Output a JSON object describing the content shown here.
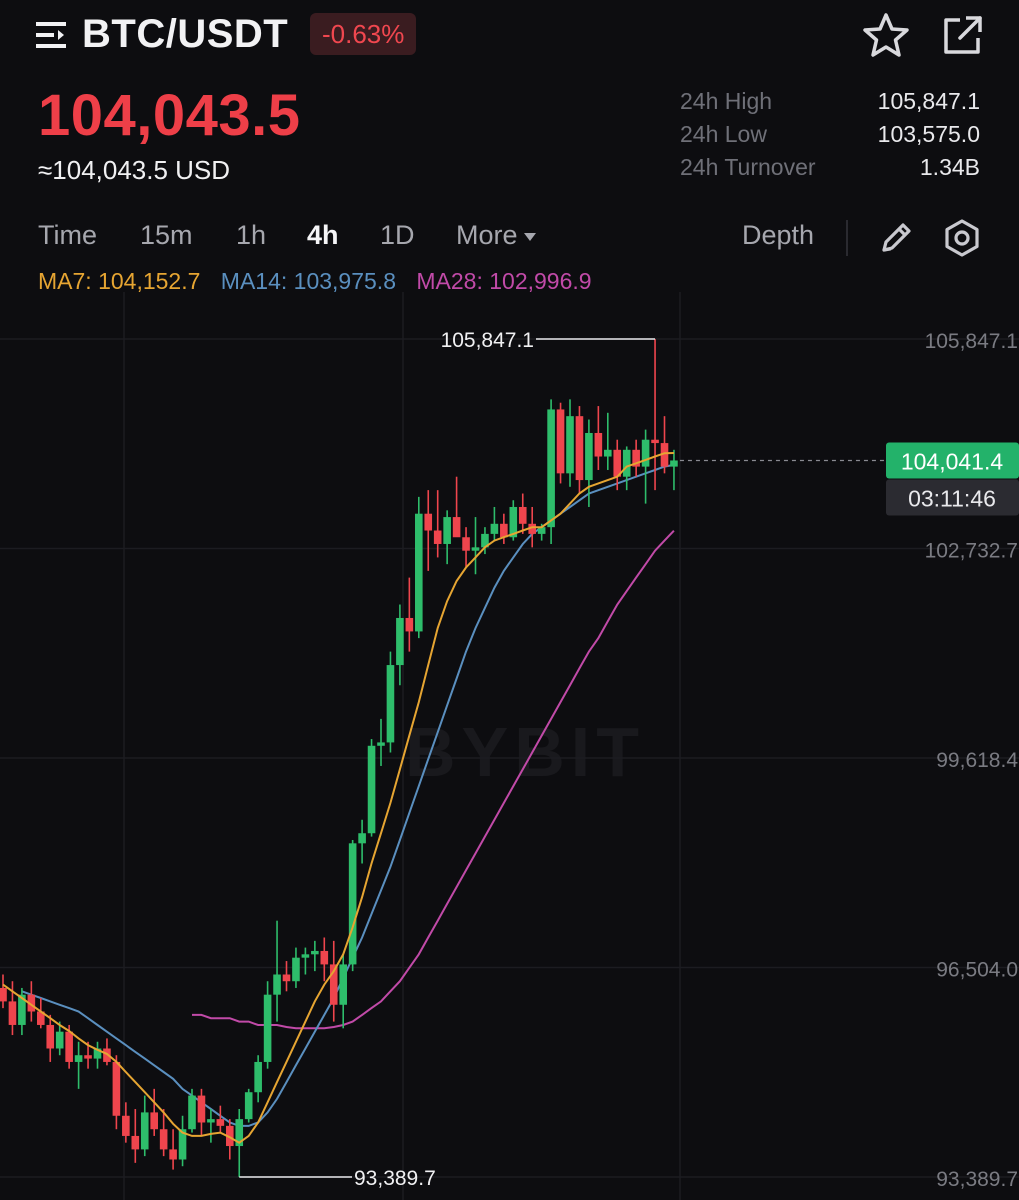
{
  "header": {
    "pair": "BTC/USDT",
    "change": "-0.63%",
    "menu_icon": "menu-icon",
    "star_icon": "star-icon",
    "share_icon": "share-icon"
  },
  "price": {
    "last": "104,043.5",
    "usd": "≈104,043.5 USD"
  },
  "stats": [
    {
      "label": "24h High",
      "value": "105,847.1"
    },
    {
      "label": "24h Low",
      "value": "103,575.0"
    },
    {
      "label": "24h Turnover",
      "value": "1.34B"
    }
  ],
  "tabs": {
    "time": "Time",
    "m15": "15m",
    "h1": "1h",
    "h4": "4h",
    "d1": "1D",
    "more": "More",
    "depth": "Depth",
    "active": "4h"
  },
  "ma": {
    "ma7": "MA7: 104,152.7",
    "ma14": "MA14: 103,975.8",
    "ma28": "MA28: 102,996.9"
  },
  "colors": {
    "up": "#2ebd6b",
    "down": "#ef454d",
    "ma7": "#e6a532",
    "ma14": "#5a8fbf",
    "ma28": "#c14aa8",
    "current_price_bg": "#23b26a"
  },
  "chart_data": {
    "type": "candlestick",
    "interval": "4h",
    "watermark": "BYBIT",
    "y_ticks": [
      "105,847.1",
      "102,732.7",
      "99,618.4",
      "96,504.0",
      "93,389.7"
    ],
    "y_tick_values": [
      105847.1,
      102732.7,
      99618.4,
      96504.0,
      93389.7
    ],
    "high_marker": "105,847.1",
    "low_marker": "93,389.7",
    "current_price": "104,041.4",
    "countdown": "03:11:46",
    "candles": [
      [
        96200,
        96400,
        95900,
        96000
      ],
      [
        96000,
        96300,
        95500,
        95650
      ],
      [
        95650,
        96200,
        95500,
        96100
      ],
      [
        96100,
        96300,
        95700,
        95850
      ],
      [
        95850,
        96050,
        95600,
        95650
      ],
      [
        95650,
        95800,
        95100,
        95300
      ],
      [
        95300,
        95700,
        95200,
        95550
      ],
      [
        95550,
        95650,
        95000,
        95100
      ],
      [
        95100,
        95400,
        94700,
        95200
      ],
      [
        95200,
        95400,
        95000,
        95150
      ],
      [
        95150,
        95400,
        95000,
        95300
      ],
      [
        95300,
        95450,
        95050,
        95100
      ],
      [
        95100,
        95200,
        94100,
        94300
      ],
      [
        94300,
        94500,
        93900,
        94000
      ],
      [
        94000,
        94400,
        93600,
        93800
      ],
      [
        93800,
        94600,
        93700,
        94350
      ],
      [
        94350,
        94700,
        94000,
        94100
      ],
      [
        94100,
        94400,
        93700,
        93800
      ],
      [
        93800,
        94100,
        93500,
        93650
      ],
      [
        93650,
        94300,
        93550,
        94100
      ],
      [
        94100,
        94700,
        94050,
        94600
      ],
      [
        94600,
        94700,
        94000,
        94200
      ],
      [
        94200,
        94400,
        93900,
        94250
      ],
      [
        94250,
        94450,
        94050,
        94150
      ],
      [
        94150,
        94250,
        93650,
        93850
      ],
      [
        93850,
        94400,
        93390,
        94250
      ],
      [
        94250,
        94700,
        94200,
        94650
      ],
      [
        94650,
        95200,
        94500,
        95100
      ],
      [
        95100,
        96300,
        95000,
        96100
      ],
      [
        96100,
        97200,
        95700,
        96400
      ],
      [
        96400,
        96600,
        96150,
        96300
      ],
      [
        96300,
        96800,
        96200,
        96650
      ],
      [
        96650,
        96800,
        96400,
        96700
      ],
      [
        96700,
        96900,
        96450,
        96750
      ],
      [
        96750,
        96950,
        96300,
        96550
      ],
      [
        96550,
        96900,
        95700,
        95950
      ],
      [
        95950,
        96700,
        95600,
        96550
      ],
      [
        96550,
        98400,
        96450,
        98350
      ],
      [
        98350,
        98700,
        98050,
        98500
      ],
      [
        98500,
        99900,
        98450,
        99800
      ],
      [
        99800,
        100200,
        99500,
        99850
      ],
      [
        99850,
        101200,
        99700,
        101000
      ],
      [
        101000,
        101900,
        100700,
        101700
      ],
      [
        101700,
        102300,
        101200,
        101500
      ],
      [
        101500,
        103500,
        101400,
        103250
      ],
      [
        103250,
        103600,
        102400,
        103000
      ],
      [
        103000,
        103600,
        102600,
        102800
      ],
      [
        102800,
        103300,
        102500,
        103200
      ],
      [
        103200,
        103800,
        102950,
        102900
      ],
      [
        102900,
        103050,
        102450,
        102700
      ],
      [
        102700,
        103200,
        102350,
        102750
      ],
      [
        102750,
        103050,
        102650,
        102950
      ],
      [
        102950,
        103350,
        102850,
        103100
      ],
      [
        103100,
        103250,
        102800,
        102900
      ],
      [
        102900,
        103450,
        102850,
        103350
      ],
      [
        103350,
        103550,
        102950,
        103100
      ],
      [
        103100,
        103350,
        102750,
        102950
      ],
      [
        102950,
        103100,
        102850,
        103050
      ],
      [
        103050,
        104950,
        102800,
        104800
      ],
      [
        104800,
        104900,
        103700,
        103850
      ],
      [
        103850,
        104950,
        103650,
        104700
      ],
      [
        104700,
        104850,
        103550,
        103750
      ],
      [
        103750,
        104650,
        103350,
        104450
      ],
      [
        104450,
        104850,
        103900,
        104100
      ],
      [
        104100,
        104750,
        103900,
        104200
      ],
      [
        104200,
        104350,
        103600,
        103800
      ],
      [
        103800,
        104250,
        103600,
        104200
      ],
      [
        104200,
        104350,
        103800,
        103950
      ],
      [
        103950,
        104500,
        103400,
        104350
      ],
      [
        104350,
        105847.1,
        103600,
        104300
      ],
      [
        104300,
        104700,
        103850,
        103950
      ],
      [
        103950,
        104200,
        103600,
        104041.4
      ]
    ],
    "ma7_series": [
      96250,
      96150,
      96050,
      95950,
      95850,
      95750,
      95650,
      95560,
      95450,
      95350,
      95280,
      95220,
      95100,
      94950,
      94800,
      94650,
      94500,
      94350,
      94180,
      94050,
      94000,
      94000,
      94030,
      94050,
      93980,
      93900,
      94000,
      94200,
      94500,
      94800,
      95100,
      95400,
      95700,
      96000,
      96250,
      96450,
      96700,
      97100,
      97550,
      98050,
      98500,
      98950,
      99450,
      99950,
      100450,
      101000,
      101550,
      101950,
      102250,
      102450,
      102600,
      102750,
      102850,
      102900,
      102950,
      103000,
      103050,
      103050,
      103150,
      103250,
      103400,
      103550,
      103650,
      103700,
      103750,
      103800,
      103950,
      104000,
      104050,
      104100,
      104150,
      104152.7
    ],
    "ma14_series": [
      96150,
      96100,
      96050,
      96000,
      95950,
      95900,
      95850,
      95750,
      95650,
      95550,
      95450,
      95350,
      95250,
      95150,
      95050,
      94950,
      94850,
      94700,
      94600,
      94500,
      94400,
      94300,
      94200,
      94150,
      94150,
      94200,
      94350,
      94550,
      94800,
      95050,
      95300,
      95550,
      95800,
      96050,
      96350,
      96650,
      96950,
      97300,
      97650,
      98000,
      98400,
      98800,
      99200,
      99600,
      100000,
      100400,
      100800,
      101200,
      101550,
      101850,
      102150,
      102400,
      102600,
      102800,
      102950,
      103050,
      103150,
      103250,
      103350,
      103450,
      103550,
      103600,
      103650,
      103700,
      103750,
      103800,
      103850,
      103900,
      103950,
      103975.8
    ],
    "ma28_series": [
      95800,
      95800,
      95750,
      95750,
      95750,
      95700,
      95700,
      95650,
      95650,
      95650,
      95620,
      95600,
      95600,
      95600,
      95600,
      95620,
      95650,
      95700,
      95800,
      95900,
      96000,
      96150,
      96300,
      96500,
      96700,
      96950,
      97200,
      97450,
      97700,
      97950,
      98200,
      98450,
      98700,
      98950,
      99200,
      99450,
      99700,
      99950,
      100200,
      100450,
      100700,
      100950,
      101200,
      101400,
      101650,
      101900,
      102100,
      102300,
      102500,
      102700,
      102850,
      102996.9
    ]
  }
}
